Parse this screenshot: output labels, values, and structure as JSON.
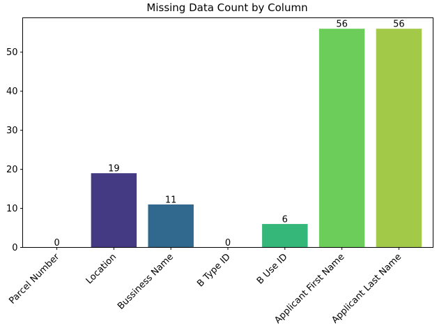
{
  "chart_data": {
    "type": "bar",
    "title": "Missing Data Count by Column",
    "xlabel": "",
    "ylabel": "",
    "categories": [
      "Parcel Number",
      "Location",
      "Bussiness Name",
      "B Type ID",
      "B Use ID",
      "Applicant First Name",
      "Applicant Last Name"
    ],
    "values": [
      0,
      19,
      11,
      0,
      6,
      56,
      56
    ],
    "colors": [
      "#440154",
      "#443983",
      "#31688e",
      "#21918c",
      "#35b779",
      "#6ccd5a",
      "#a2c948"
    ],
    "ylim": [
      0,
      58.8
    ],
    "yticks": [
      0,
      10,
      20,
      30,
      40,
      50
    ],
    "grid": false,
    "legend": "none"
  }
}
